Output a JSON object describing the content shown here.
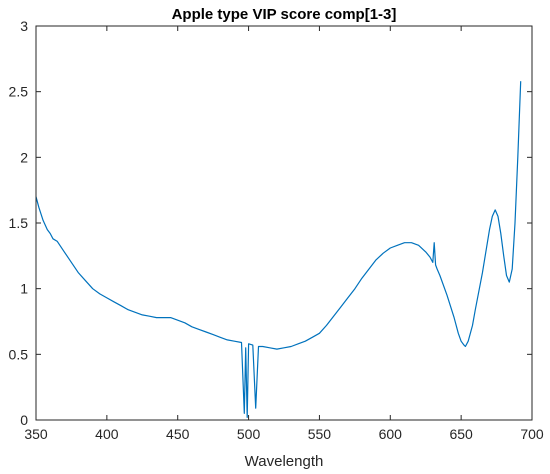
{
  "chart_data": {
    "type": "line",
    "title": "Apple type VIP score comp[1-3]",
    "xlabel": "Wavelength",
    "ylabel": "",
    "xlim": [
      350,
      700
    ],
    "ylim": [
      0,
      3
    ],
    "xticks": [
      350,
      400,
      450,
      500,
      550,
      600,
      650,
      700
    ],
    "yticks": [
      0,
      0.5,
      1,
      1.5,
      2,
      2.5,
      3
    ],
    "ytick_labels": [
      "0",
      "0.5",
      "1",
      "1.5",
      "2",
      "2.5",
      "3"
    ],
    "grid": false,
    "box": true,
    "line_color": "#0072BD",
    "series": [
      {
        "x": [
          350,
          352,
          355,
          358,
          360,
          362,
          365,
          370,
          375,
          380,
          385,
          390,
          395,
          400,
          405,
          410,
          415,
          420,
          425,
          430,
          435,
          440,
          445,
          450,
          455,
          460,
          465,
          470,
          475,
          480,
          485,
          490,
          495,
          497,
          498,
          499,
          500,
          503,
          505,
          507,
          510,
          515,
          520,
          525,
          530,
          535,
          540,
          545,
          550,
          555,
          560,
          565,
          570,
          575,
          580,
          585,
          590,
          595,
          600,
          605,
          610,
          615,
          620,
          625,
          628,
          630,
          631,
          632,
          633,
          635,
          640,
          645,
          648,
          650,
          652,
          653,
          655,
          658,
          660,
          665,
          670,
          672,
          674,
          676,
          678,
          680,
          682,
          684,
          686,
          688,
          690,
          692
        ],
        "y": [
          1.7,
          1.62,
          1.52,
          1.45,
          1.42,
          1.38,
          1.36,
          1.28,
          1.2,
          1.12,
          1.06,
          1.0,
          0.96,
          0.93,
          0.9,
          0.87,
          0.84,
          0.82,
          0.8,
          0.79,
          0.78,
          0.78,
          0.78,
          0.76,
          0.74,
          0.71,
          0.69,
          0.67,
          0.65,
          0.63,
          0.61,
          0.6,
          0.59,
          0.05,
          0.55,
          0.02,
          0.58,
          0.57,
          0.09,
          0.56,
          0.56,
          0.55,
          0.54,
          0.55,
          0.56,
          0.58,
          0.6,
          0.63,
          0.66,
          0.72,
          0.79,
          0.86,
          0.93,
          1.0,
          1.08,
          1.15,
          1.22,
          1.27,
          1.31,
          1.33,
          1.35,
          1.35,
          1.33,
          1.28,
          1.24,
          1.2,
          1.35,
          1.18,
          1.15,
          1.1,
          0.95,
          0.78,
          0.66,
          0.6,
          0.57,
          0.56,
          0.6,
          0.72,
          0.84,
          1.12,
          1.45,
          1.55,
          1.6,
          1.55,
          1.42,
          1.25,
          1.1,
          1.05,
          1.15,
          1.5,
          2.0,
          2.58
        ]
      }
    ]
  }
}
